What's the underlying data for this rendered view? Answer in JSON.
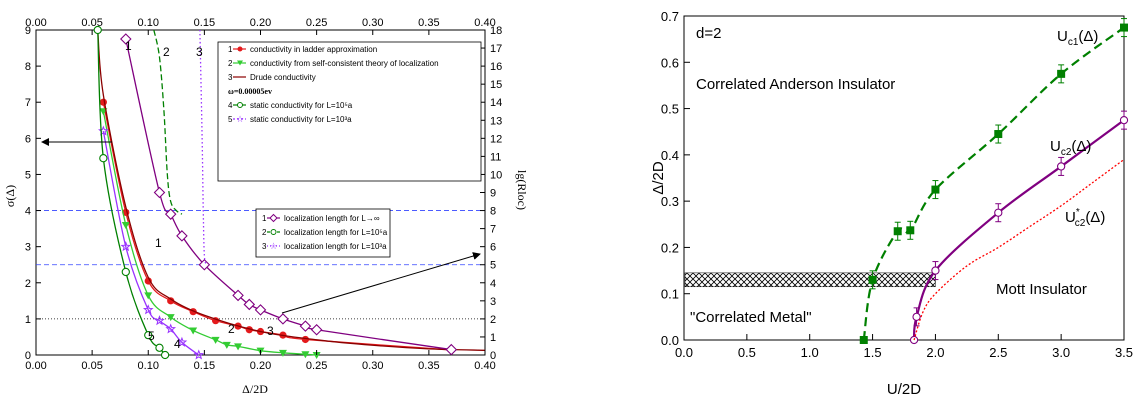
{
  "chart_data": [
    {
      "type": "line",
      "xlabel": "Δ/2D",
      "ylabel": "σ(Δ)",
      "y2label": "lg(Rloc)",
      "xlim": [
        0.0,
        0.4
      ],
      "ylim": [
        0,
        9
      ],
      "y2lim": [
        0,
        18
      ],
      "xticks": [
        "0.00",
        "0.05",
        "0.10",
        "0.15",
        "0.20",
        "0.25",
        "0.30",
        "0.35",
        "0.40"
      ],
      "yticks": [
        "0",
        "1",
        "2",
        "3",
        "4",
        "5",
        "6",
        "7",
        "8",
        "9"
      ],
      "y2ticks": [
        "0",
        "1",
        "2",
        "3",
        "4",
        "5",
        "6",
        "7",
        "8",
        "9",
        "10",
        "11",
        "12",
        "13",
        "14",
        "15",
        "16",
        "17",
        "18"
      ],
      "legend1": [
        {
          "num": "1",
          "label": "conductivity in ladder approximation"
        },
        {
          "num": "2",
          "label": "conductivity from self-consistent theory of localization"
        },
        {
          "num": "3",
          "label": "Drude conductivity"
        },
        {
          "num": "",
          "label": "ω=0.00005ev"
        },
        {
          "num": "4",
          "label": "static conductivity for L=10⁵a"
        },
        {
          "num": "5",
          "label": "static conductivity for L=10³a"
        }
      ],
      "legend2": [
        {
          "num": "1",
          "label": "localization length for L→∞"
        },
        {
          "num": "2",
          "label": "localization length for L=10⁵a"
        },
        {
          "num": "3",
          "label": "localization length for L=10³a"
        }
      ],
      "curve_labels": [
        "1",
        "2",
        "3",
        "1",
        "2",
        "3",
        "4",
        "5"
      ],
      "series": [
        {
          "name": "conductivity in ladder approximation",
          "color": "#e41a1c",
          "marker": "circle-filled",
          "x": [
            0.06,
            0.08,
            0.1,
            0.12,
            0.14,
            0.16,
            0.18,
            0.19,
            0.2,
            0.22,
            0.24,
            0.37
          ],
          "y": [
            7.0,
            3.95,
            2.05,
            1.5,
            1.2,
            0.95,
            0.8,
            0.7,
            0.65,
            0.55,
            0.43,
            0.14
          ]
        },
        {
          "name": "conductivity from self-consistent theory of localization",
          "color": "#33cc33",
          "marker": "triangle-down",
          "x": [
            0.06,
            0.08,
            0.1,
            0.12,
            0.14,
            0.16,
            0.17,
            0.18,
            0.2,
            0.22,
            0.24,
            0.25
          ],
          "y": [
            6.75,
            3.6,
            1.65,
            1.05,
            0.68,
            0.42,
            0.28,
            0.24,
            0.12,
            0.06,
            0.02,
            0.0
          ]
        },
        {
          "name": "Drude conductivity",
          "color": "#8b0000",
          "marker": "none",
          "x": [
            0.055,
            0.06,
            0.08,
            0.1,
            0.12,
            0.15,
            0.2,
            0.25,
            0.3,
            0.35,
            0.4
          ],
          "y": [
            9.0,
            7.2,
            4.1,
            2.15,
            1.55,
            1.1,
            0.65,
            0.42,
            0.27,
            0.17,
            0.13
          ]
        },
        {
          "name": "static conductivity for L=10⁵a",
          "color": "#9933ff",
          "marker": "star",
          "x": [
            0.06,
            0.08,
            0.1,
            0.11,
            0.12,
            0.13,
            0.145
          ],
          "y": [
            6.2,
            3.0,
            1.25,
            0.95,
            0.72,
            0.35,
            0.0
          ]
        },
        {
          "name": "static conductivity for L=10³a",
          "color": "#008000",
          "marker": "circle-open",
          "x": [
            0.055,
            0.06,
            0.08,
            0.1,
            0.11,
            0.115
          ],
          "y": [
            9.0,
            5.45,
            2.3,
            0.55,
            0.2,
            0.0
          ]
        },
        {
          "name": "localization length for L→∞",
          "color": "#800080",
          "marker": "diamond",
          "axis": "right",
          "x": [
            0.08,
            0.11,
            0.12,
            0.13,
            0.15,
            0.18,
            0.19,
            0.2,
            0.22,
            0.24,
            0.25,
            0.37
          ],
          "y": [
            17.5,
            9.0,
            7.8,
            6.6,
            5.0,
            3.3,
            2.8,
            2.5,
            2.0,
            1.6,
            1.4,
            0.3
          ]
        },
        {
          "name": "localization length for L=10⁵a",
          "color": "#008000",
          "marker": "none",
          "dashed": true,
          "axis": "right",
          "x": [
            0.105,
            0.11,
            0.114,
            0.117,
            0.12,
            0.125,
            0.13
          ],
          "y": [
            18,
            16.5,
            13.5,
            10.0,
            8.5,
            8.0,
            7.8
          ]
        },
        {
          "name": "localization length for L=10³a",
          "color": "#9933ff",
          "marker": "none",
          "dotted": true,
          "axis": "right",
          "x": [
            0.146,
            0.148,
            0.149,
            0.15,
            0.152
          ],
          "y": [
            18,
            12.0,
            8.0,
            5.5,
            5.0
          ]
        }
      ]
    },
    {
      "type": "line",
      "title": "d=2",
      "xlabel": "U/2D",
      "ylabel": "Δ/2D",
      "xlim": [
        0.0,
        3.5
      ],
      "ylim": [
        0.0,
        0.7
      ],
      "xticks": [
        "0.0",
        "0.5",
        "1.0",
        "1.5",
        "2.0",
        "2.5",
        "3.0",
        "3.5"
      ],
      "yticks": [
        "0.0",
        "0.1",
        "0.2",
        "0.3",
        "0.4",
        "0.5",
        "0.6",
        "0.7"
      ],
      "annotations": [
        "Correlated Anderson Insulator",
        "\"Correlated Metal\"",
        "Mott Insulator"
      ],
      "series": [
        {
          "name": "U_c1(Δ)",
          "color": "#008000",
          "marker": "square-filled",
          "dashed": true,
          "x": [
            1.43,
            1.5,
            1.7,
            1.8,
            2.0,
            2.5,
            3.0,
            3.5
          ],
          "y": [
            0.0,
            0.13,
            0.235,
            0.237,
            0.325,
            0.445,
            0.575,
            0.675
          ]
        },
        {
          "name": "U_c2(Δ)",
          "color": "#800080",
          "marker": "circle-open",
          "x": [
            1.83,
            1.85,
            2.0,
            2.5,
            3.0,
            3.5
          ],
          "y": [
            0.0,
            0.05,
            0.15,
            0.275,
            0.375,
            0.475
          ]
        },
        {
          "name": "U*_c2(Δ)",
          "color": "#ff0000",
          "marker": "none",
          "dotted": true,
          "x": [
            1.83,
            1.9,
            2.0,
            2.25,
            2.5,
            2.75,
            3.0,
            3.25,
            3.5
          ],
          "y": [
            0.0,
            0.06,
            0.1,
            0.16,
            0.2,
            0.245,
            0.29,
            0.34,
            0.39
          ]
        }
      ]
    }
  ]
}
